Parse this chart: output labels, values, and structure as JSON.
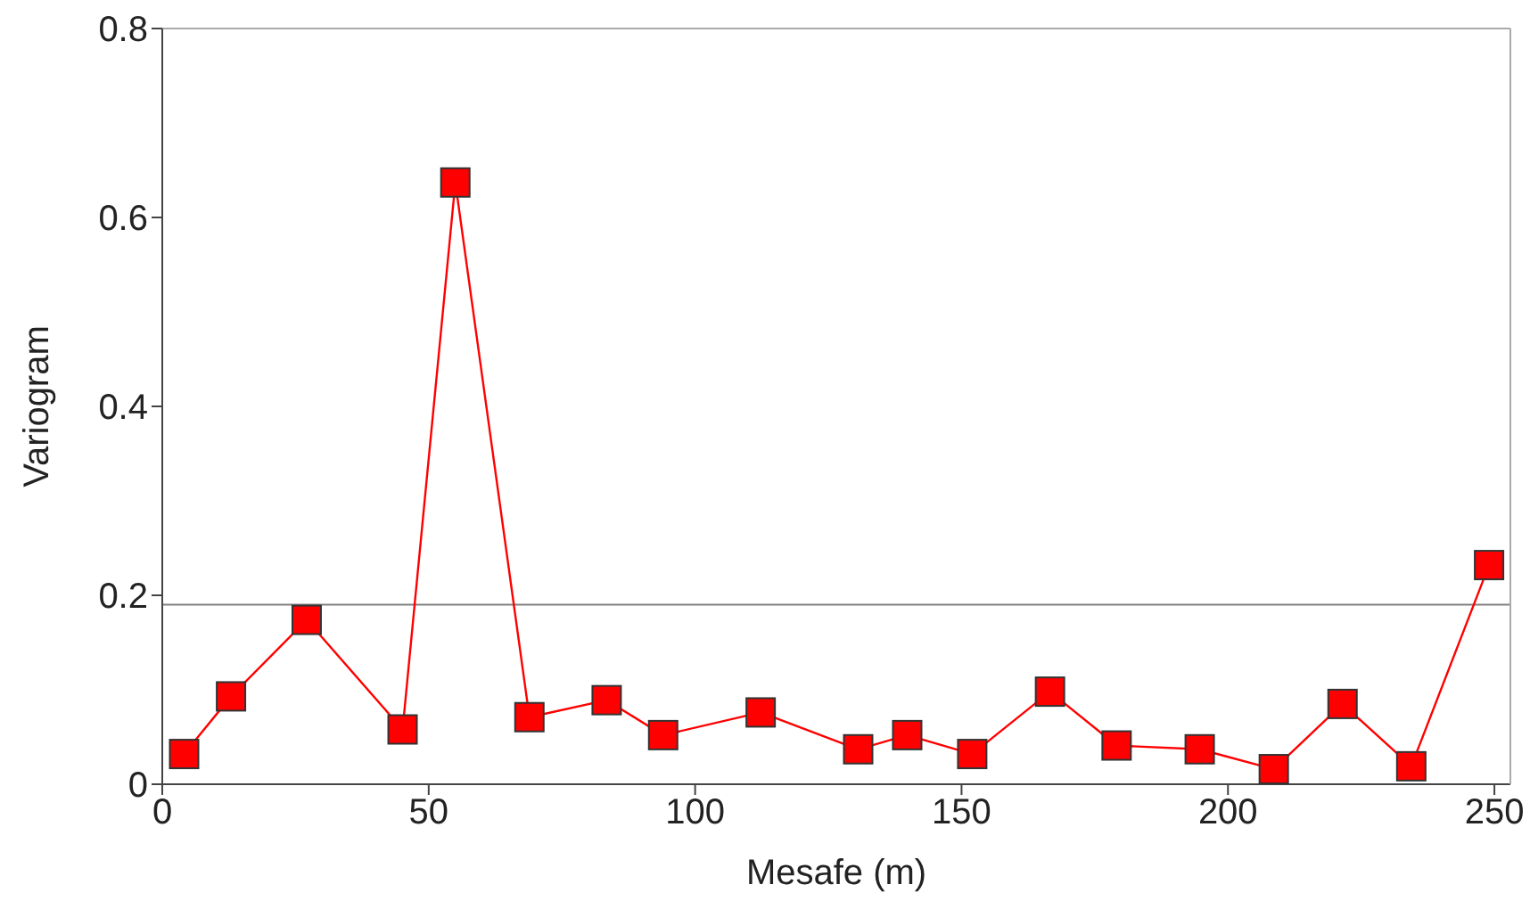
{
  "chart_data": {
    "type": "line",
    "xlabel": "Mesafe (m)",
    "ylabel": "Variogram",
    "x": [
      4.1,
      12.9,
      27.1,
      45.1,
      55,
      68.9,
      83.4,
      94,
      112.3,
      130.6,
      139.8,
      152,
      166.6,
      179.1,
      194.7,
      208.6,
      221.5,
      234.4,
      249
    ],
    "series": [
      {
        "color": "#ff0000",
        "values": [
          0.032,
          0.093,
          0.174,
          0.058,
          0.637,
          0.071,
          0.089,
          0.052,
          0.076,
          0.037,
          0.052,
          0.032,
          0.098,
          0.041,
          0.037,
          0.016,
          0.085,
          0.019,
          0.232
        ]
      }
    ],
    "xlim": [
      0,
      253
    ],
    "xticks": [
      0,
      50,
      100,
      150,
      200,
      250
    ],
    "ylim": [
      0,
      0.8
    ],
    "yticks": [
      0,
      0.2,
      0.4,
      0.6,
      0.8
    ],
    "marker": "square",
    "line_style": "solid",
    "grid": false,
    "legend": false,
    "ref_lines": [
      {
        "axis": "y",
        "value": 0.19,
        "color": "#808080"
      }
    ]
  }
}
